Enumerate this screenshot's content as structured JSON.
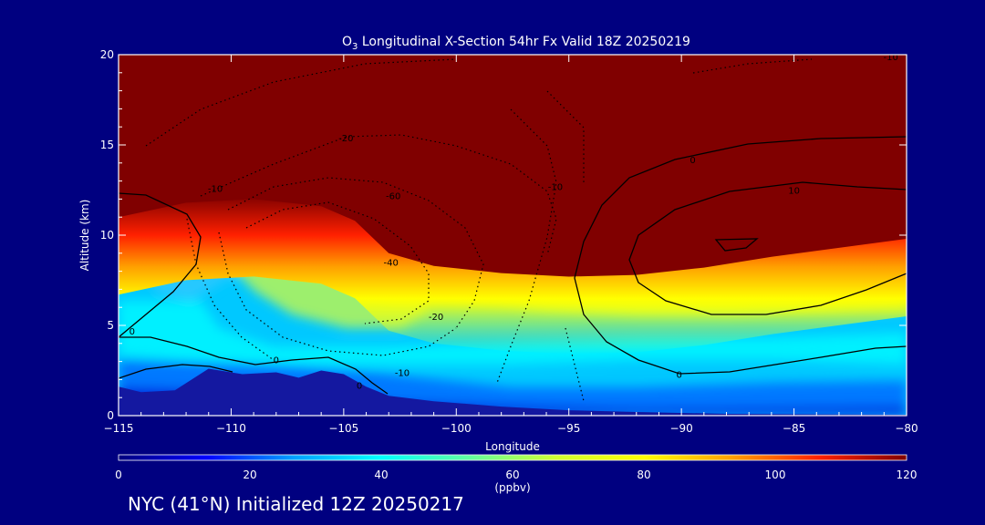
{
  "chart_data": {
    "type": "heatmap",
    "title_prefix": "O",
    "title_subscript": "3",
    "title_rest": " Longitudinal X-Section 54hr  Fx Valid 18Z 20250219",
    "xlabel": "Longitude",
    "ylabel": "Altitude (km)",
    "xlim": [
      -115,
      -80
    ],
    "ylim": [
      0,
      20
    ],
    "x_ticks": [
      -115,
      -110,
      -105,
      -100,
      -95,
      -90,
      -85,
      -80
    ],
    "x_tick_labels": [
      "−115",
      "−110",
      "−105",
      "−100",
      "−95",
      "−90",
      "−85",
      "−80"
    ],
    "y_ticks": [
      0,
      5,
      10,
      15,
      20
    ],
    "y_tick_labels": [
      "0",
      "5",
      "10",
      "15",
      "20"
    ],
    "colorbar": {
      "min": 0,
      "max": 120,
      "ticks": [
        0,
        20,
        40,
        60,
        80,
        100,
        120
      ],
      "tick_labels": [
        "0",
        "20",
        "40",
        "60",
        "80",
        "100",
        "120"
      ],
      "unit": "(ppbv)",
      "colors": [
        "#00007f",
        "#0000ff",
        "#00a0ff",
        "#00ffff",
        "#60ffa0",
        "#d0ff30",
        "#ffff00",
        "#ffa000",
        "#ff2000",
        "#800000"
      ]
    },
    "tropopause_height_km": [
      {
        "lon": -115,
        "alt": 11.0
      },
      {
        "lon": -112,
        "alt": 11.8
      },
      {
        "lon": -109,
        "alt": 12.0
      },
      {
        "lon": -106,
        "alt": 11.6
      },
      {
        "lon": -104.5,
        "alt": 10.8
      },
      {
        "lon": -103,
        "alt": 9.0
      },
      {
        "lon": -101,
        "alt": 8.3
      },
      {
        "lon": -98,
        "alt": 7.9
      },
      {
        "lon": -95,
        "alt": 7.7
      },
      {
        "lon": -92,
        "alt": 7.8
      },
      {
        "lon": -89,
        "alt": 8.2
      },
      {
        "lon": -86,
        "alt": 8.8
      },
      {
        "lon": -83,
        "alt": 9.3
      },
      {
        "lon": -80,
        "alt": 9.8
      }
    ],
    "terrain_km": [
      {
        "lon": -115,
        "alt": 1.6
      },
      {
        "lon": -114,
        "alt": 1.3
      },
      {
        "lon": -112.5,
        "alt": 1.4
      },
      {
        "lon": -111,
        "alt": 2.6
      },
      {
        "lon": -109.5,
        "alt": 2.3
      },
      {
        "lon": -108,
        "alt": 2.4
      },
      {
        "lon": -107,
        "alt": 2.1
      },
      {
        "lon": -106,
        "alt": 2.5
      },
      {
        "lon": -105,
        "alt": 2.3
      },
      {
        "lon": -104,
        "alt": 1.6
      },
      {
        "lon": -103,
        "alt": 1.1
      },
      {
        "lon": -101,
        "alt": 0.8
      },
      {
        "lon": -98,
        "alt": 0.5
      },
      {
        "lon": -95,
        "alt": 0.3
      },
      {
        "lon": -92,
        "alt": 0.2
      },
      {
        "lon": -88,
        "alt": 0.1
      },
      {
        "lon": -80,
        "alt": 0.05
      }
    ],
    "contour_labels": [
      {
        "text": "-20",
        "lon": -104.9,
        "alt": 15.2
      },
      {
        "text": "-10",
        "lon": -110.7,
        "alt": 12.4
      },
      {
        "text": "-60",
        "lon": -102.8,
        "alt": 12.0
      },
      {
        "text": "-40",
        "lon": -102.9,
        "alt": 8.3
      },
      {
        "text": "-20",
        "lon": -100.9,
        "alt": 5.3
      },
      {
        "text": "-10",
        "lon": -102.4,
        "alt": 2.2
      },
      {
        "text": "-10",
        "lon": -95.6,
        "alt": 12.5
      },
      {
        "text": "-10",
        "lon": -80.7,
        "alt": 19.7
      },
      {
        "text": "0",
        "lon": -104.3,
        "alt": 1.5
      },
      {
        "text": "0",
        "lon": -108.0,
        "alt": 2.9
      },
      {
        "text": "0",
        "lon": -114.4,
        "alt": 4.5
      },
      {
        "text": "0",
        "lon": -89.5,
        "alt": 14.0
      },
      {
        "text": "0",
        "lon": -90.1,
        "alt": 2.1
      },
      {
        "text": "10",
        "lon": -85.0,
        "alt": 12.3
      }
    ]
  },
  "footer_text": "NYC (41°N) Initialized 12Z 20250217"
}
